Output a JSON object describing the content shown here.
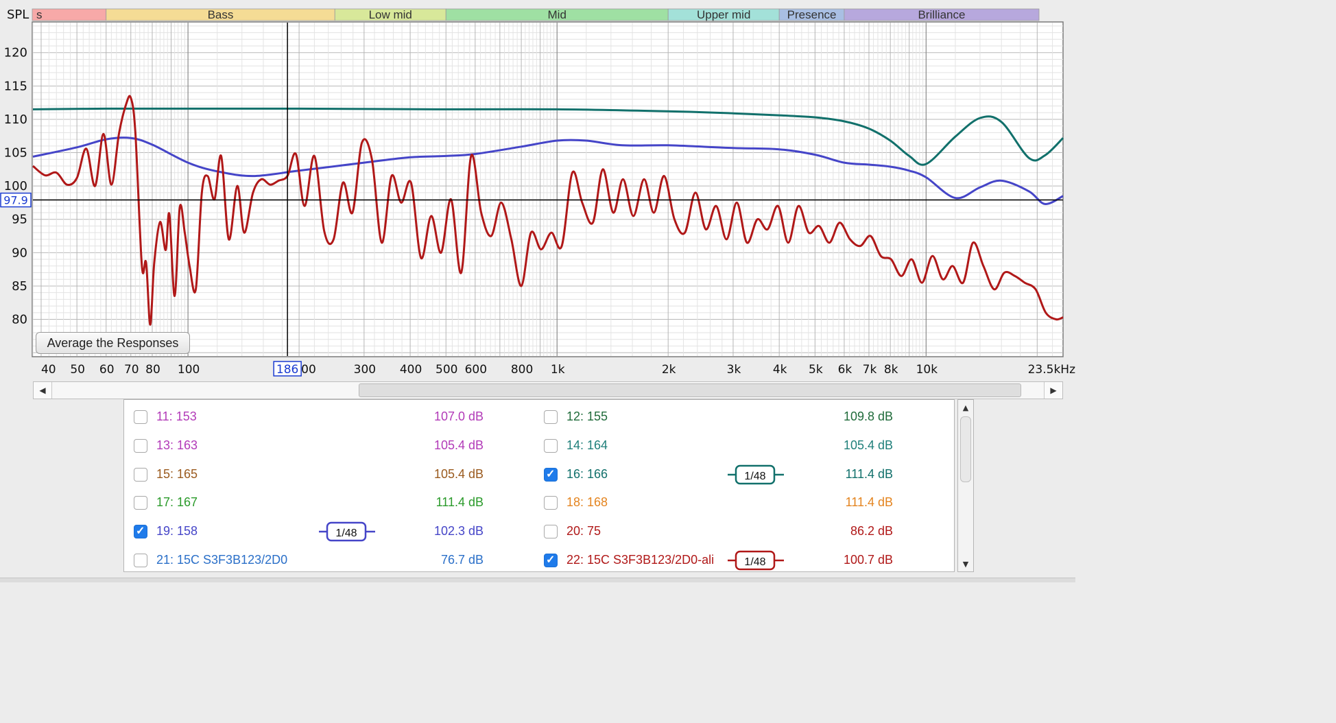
{
  "graph": {
    "spl_label": "SPL",
    "cursor_db": "97.9",
    "cursor_freq": "186",
    "cursor_freq_tail": "00",
    "bands": [
      {
        "label": "s",
        "color": "#f7a9a8"
      },
      {
        "label": "Bass",
        "color": "#f5dc95"
      },
      {
        "label": "Low mid",
        "color": "#d8e89a"
      },
      {
        "label": "Mid",
        "color": "#9fe0a3"
      },
      {
        "label": "Upper mid",
        "color": "#a3e1d9"
      },
      {
        "label": "Presence",
        "color": "#a9bfe3"
      },
      {
        "label": "Brilliance",
        "color": "#b7a8dd"
      }
    ],
    "y_ticks": [
      "120",
      "115",
      "110",
      "105",
      "100",
      "95",
      "90",
      "85",
      "80"
    ],
    "x_ticks": [
      "40",
      "50",
      "60",
      "70",
      "80",
      "100",
      "300",
      "400",
      "500",
      "600",
      "800",
      "1k",
      "2k",
      "3k",
      "4k",
      "5k",
      "6k",
      "7k",
      "8k",
      "10k",
      "23.5kHz"
    ]
  },
  "average_button": "Average the Responses",
  "measurements": [
    {
      "id": "11",
      "name": "11: 153",
      "value": "107.0 dB",
      "checked": false,
      "color": "#b23ab8"
    },
    {
      "id": "12",
      "name": "12: 155",
      "value": "109.8 dB",
      "checked": false,
      "color": "#1f6b3a"
    },
    {
      "id": "13",
      "name": "13: 163",
      "value": "105.4 dB",
      "checked": false,
      "color": "#b23ab8"
    },
    {
      "id": "14",
      "name": "14: 164",
      "value": "105.4 dB",
      "checked": false,
      "color": "#1f7f7a"
    },
    {
      "id": "15",
      "name": "15: 165",
      "value": "105.4 dB",
      "checked": false,
      "color": "#9a5a1e"
    },
    {
      "id": "16",
      "name": "16: 166",
      "value": "111.4 dB",
      "checked": true,
      "color": "#11706b",
      "smoothing": "1/48"
    },
    {
      "id": "17",
      "name": "17: 167",
      "value": "111.4 dB",
      "checked": false,
      "color": "#2a9a2a"
    },
    {
      "id": "18",
      "name": "18: 168",
      "value": "111.4 dB",
      "checked": false,
      "color": "#e4841f"
    },
    {
      "id": "19",
      "name": "19: 158",
      "value": "102.3 dB",
      "checked": true,
      "color": "#4545c8",
      "smoothing": "1/48"
    },
    {
      "id": "20",
      "name": "20: 75",
      "value": "86.2 dB",
      "checked": false,
      "color": "#b01818"
    },
    {
      "id": "21",
      "name": "21: 15C S3F3B123/2D0",
      "value": "76.7 dB",
      "checked": false,
      "color": "#2a6fc8"
    },
    {
      "id": "22",
      "name": "22: 15C S3F3B123/2D0-ali",
      "value": "100.7 dB",
      "checked": true,
      "color": "#b01818",
      "smoothing": "1/48"
    }
  ],
  "chart_data": {
    "type": "line",
    "xlabel": "",
    "ylabel": "SPL",
    "x_scale": "log",
    "xlim": [
      38,
      23500
    ],
    "ylim": [
      74.5,
      124.5
    ],
    "grid": true,
    "cursor": {
      "freq": 186,
      "spl": 97.9
    },
    "series": [
      {
        "name": "16: 166",
        "color": "#11706b",
        "x": [
          38,
          60,
          100,
          200,
          500,
          1000,
          2000,
          3000,
          4000,
          5000,
          6000,
          7000,
          8000,
          9000,
          10000,
          12000,
          14000,
          16000,
          19000,
          21000,
          23500
        ],
        "y": [
          111.5,
          111.6,
          111.6,
          111.6,
          111.5,
          111.5,
          111.2,
          110.9,
          110.6,
          110.3,
          109.7,
          108.6,
          106.8,
          104.5,
          103.3,
          107.4,
          110.2,
          109.6,
          104.2,
          104.6,
          107.2
        ]
      },
      {
        "name": "19: 158",
        "color": "#4545c8",
        "x": [
          38,
          50,
          60,
          70,
          80,
          100,
          120,
          150,
          200,
          300,
          400,
          500,
          600,
          800,
          1000,
          1200,
          1500,
          2000,
          3000,
          4000,
          5000,
          6000,
          7000,
          8000,
          9000,
          10000,
          12000,
          14000,
          16000,
          19000,
          21000,
          23500
        ],
        "y": [
          104.4,
          105.8,
          107.0,
          107.2,
          106.2,
          103.5,
          102.2,
          101.5,
          102.3,
          103.5,
          104.3,
          104.5,
          104.8,
          105.9,
          106.8,
          106.8,
          106.1,
          106.1,
          105.7,
          105.5,
          104.7,
          103.5,
          103.2,
          102.9,
          102.3,
          101.3,
          98.2,
          99.8,
          100.8,
          99.2,
          97.3,
          98.5
        ]
      },
      {
        "name": "22: 15C S3F3B123/2D0-ali",
        "color": "#b01818",
        "x": [
          38,
          41,
          44,
          47,
          50,
          53,
          56,
          59,
          62,
          65,
          68,
          70,
          72,
          75,
          77,
          79,
          81,
          84,
          87,
          89,
          92,
          95,
          98,
          101,
          105,
          109,
          113,
          118,
          123,
          129,
          136,
          142,
          150,
          158,
          167,
          176,
          186,
          196,
          207,
          220,
          234,
          248,
          263,
          279,
          296,
          315,
          335,
          356,
          378,
          402,
          428,
          456,
          485,
          516,
          550,
          585,
          623,
          663,
          706,
          752,
          800,
          850,
          905,
          965,
          1030,
          1100,
          1170,
          1250,
          1330,
          1420,
          1510,
          1610,
          1720,
          1830,
          1950,
          2080,
          2220,
          2370,
          2530,
          2700,
          2880,
          3070,
          3270,
          3490,
          3720,
          3970,
          4230,
          4510,
          4810,
          5130,
          5470,
          5830,
          6220,
          6630,
          7070,
          7540,
          8040,
          8570,
          9140,
          9750,
          10400,
          11100,
          11800,
          12600,
          13400,
          14300,
          15300,
          16300,
          17400,
          18500,
          19800,
          21100,
          22500,
          23500
        ],
        "y": [
          103.0,
          101.6,
          102.0,
          100.2,
          101.2,
          105.6,
          100.0,
          107.8,
          100.2,
          107.8,
          112.3,
          113.2,
          108.0,
          88.0,
          88.5,
          79.2,
          88.5,
          94.6,
          90.4,
          95.8,
          83.5,
          96.8,
          93.0,
          88.0,
          84.5,
          99.0,
          101.5,
          98.0,
          104.5,
          92.0,
          100.0,
          93.0,
          99.0,
          101.0,
          100.2,
          100.8,
          101.5,
          104.8,
          97.0,
          104.5,
          93.2,
          92.0,
          100.5,
          96.0,
          106.5,
          104.0,
          91.5,
          101.5,
          97.5,
          100.5,
          89.2,
          95.5,
          90.0,
          98.0,
          87.0,
          104.5,
          96.0,
          92.5,
          97.5,
          92.0,
          85.0,
          93.0,
          90.5,
          93.0,
          91.0,
          102.0,
          97.5,
          94.5,
          102.5,
          96.0,
          101.0,
          95.5,
          101.0,
          96.0,
          101.5,
          95.0,
          93.0,
          99.0,
          93.5,
          97.0,
          92.0,
          97.5,
          91.5,
          95.0,
          93.5,
          97.0,
          91.5,
          97.0,
          93.0,
          94.0,
          91.5,
          94.5,
          92.0,
          91.0,
          92.5,
          89.5,
          89.0,
          86.5,
          89.0,
          85.5,
          89.5,
          86.0,
          88.0,
          85.5,
          91.5,
          88.0,
          84.5,
          87.0,
          86.5,
          85.5,
          84.5,
          81.0,
          80.0,
          80.3
        ]
      }
    ]
  }
}
